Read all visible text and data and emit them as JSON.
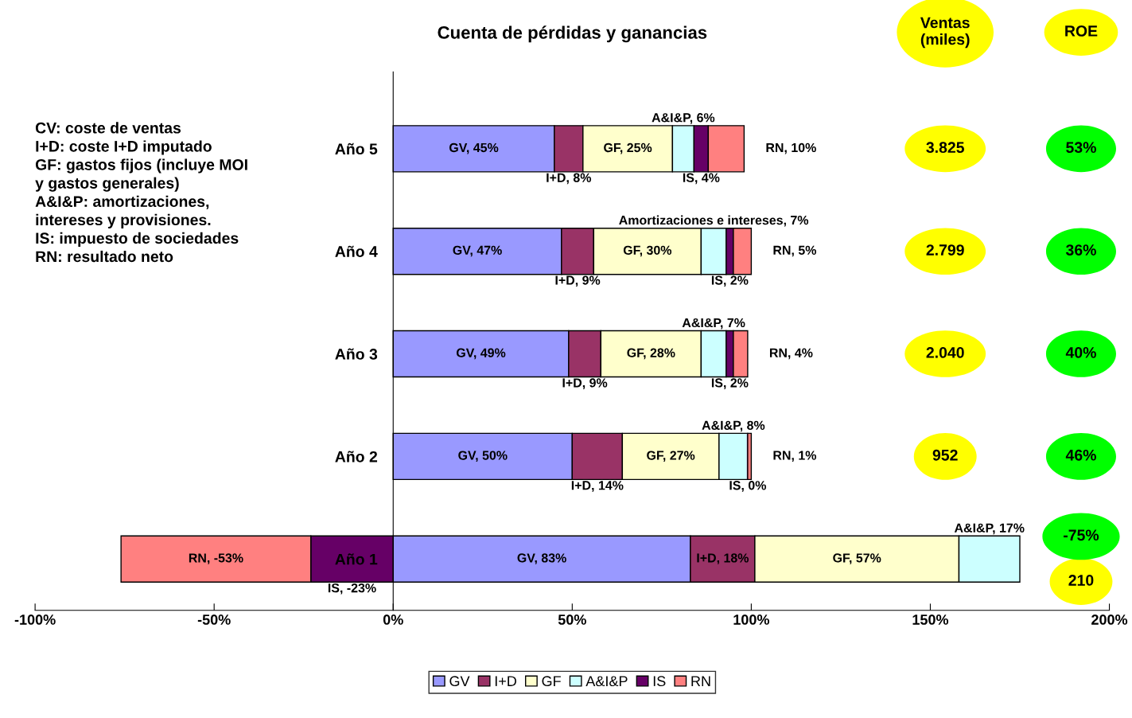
{
  "chart_data": {
    "type": "bar",
    "orientation": "horizontal",
    "stacked": true,
    "title": "Cuenta de pérdidas y ganancias",
    "categories": [
      "Año 5",
      "Año 4",
      "Año 3",
      "Año 2",
      "Año 1"
    ],
    "series": [
      {
        "name": "GV",
        "color": "#9999ff",
        "values": [
          45,
          47,
          49,
          50,
          83
        ],
        "value_labels": [
          "GV, 45%",
          "GV, 47%",
          "GV, 49%",
          "GV, 50%",
          "GV, 83%"
        ]
      },
      {
        "name": "I+D",
        "color": "#993366",
        "values": [
          8,
          9,
          9,
          14,
          18
        ],
        "value_labels": [
          "I+D, 8%",
          "I+D, 9%",
          "I+D, 9%",
          "I+D, 14%",
          "I+D, 18%"
        ]
      },
      {
        "name": "GF",
        "color": "#ffffcc",
        "values": [
          25,
          30,
          28,
          27,
          57
        ],
        "value_labels": [
          "GF, 25%",
          "GF, 30%",
          "GF, 28%",
          "GF, 27%",
          "GF, 57%"
        ]
      },
      {
        "name": "A&I&P",
        "color": "#ccffff",
        "values": [
          6,
          7,
          7,
          8,
          17
        ],
        "value_labels": [
          "A&I&P, 6%",
          "Amortizaciones e intereses, 7%",
          "A&I&P, 7%",
          "A&I&P, 8%",
          "A&I&P, 17%"
        ]
      },
      {
        "name": "IS",
        "color": "#660066",
        "values": [
          4,
          2,
          2,
          0,
          -23
        ],
        "value_labels": [
          "IS, 4%",
          "IS, 2%",
          "IS, 2%",
          "IS, 0%",
          "IS, -23%"
        ]
      },
      {
        "name": "RN",
        "color": "#ff8080",
        "values": [
          10,
          5,
          4,
          1,
          -53
        ],
        "value_labels": [
          "RN, 10%",
          "RN, 5%",
          "RN, 4%",
          "RN, 1%",
          "RN, -53%"
        ]
      }
    ],
    "xlim": [
      -100,
      200
    ],
    "xticks": [
      {
        "value": -100,
        "label": "-100%"
      },
      {
        "value": -50,
        "label": "-50%"
      },
      {
        "value": 0,
        "label": "0%"
      },
      {
        "value": 50,
        "label": "50%"
      },
      {
        "value": 100,
        "label": "100%"
      },
      {
        "value": 150,
        "label": "150%"
      },
      {
        "value": 200,
        "label": "200%"
      }
    ],
    "legend": "bottom",
    "annotations": [
      "CV: coste de ventas\nI+D: coste I+D imputado\nGF: gastos fijos (incluye MOI\ny gastos generales)\nA&I&P: amortizaciones,\nintereses y provisiones.\nIS: impuesto de sociedades\nRN: resultado neto",
      "Ventas\n(miles)",
      "ROE",
      "3.825",
      "53%",
      "2.799",
      "36%",
      "2.040",
      "40%",
      "952",
      "46%",
      "210",
      "-75%"
    ]
  }
}
